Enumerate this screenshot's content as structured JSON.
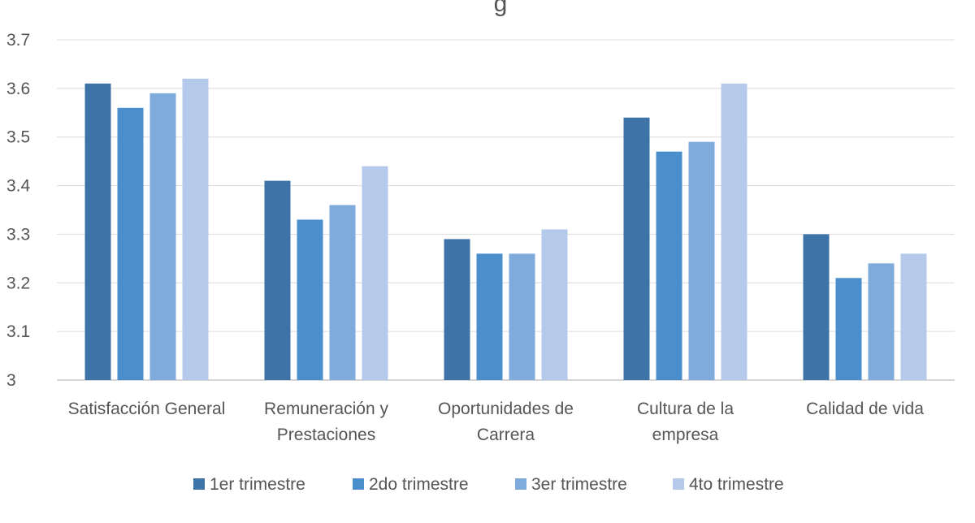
{
  "chart_data": {
    "type": "bar",
    "title": "g",
    "xlabel": "",
    "ylabel": "",
    "ylim": [
      3,
      3.7
    ],
    "yticks": [
      "3",
      "3.1",
      "3.2",
      "3.3",
      "3.4",
      "3.5",
      "3.6",
      "3.7"
    ],
    "grid": true,
    "legend_position": "bottom",
    "categories": [
      [
        "Satisfacción General"
      ],
      [
        "Remuneración y",
        "Prestaciones"
      ],
      [
        "Oportunidades de",
        "Carrera"
      ],
      [
        "Cultura de la",
        "empresa"
      ],
      [
        "Calidad de vida"
      ]
    ],
    "series": [
      {
        "name": "1er trimestre",
        "color": "#3e73a7",
        "values": [
          3.61,
          3.41,
          3.29,
          3.54,
          3.3
        ]
      },
      {
        "name": "2do trimestre",
        "color": "#4a8fcb",
        "values": [
          3.56,
          3.33,
          3.26,
          3.47,
          3.21
        ]
      },
      {
        "name": "3er trimestre",
        "color": "#7eaadc",
        "values": [
          3.59,
          3.36,
          3.26,
          3.49,
          3.24
        ]
      },
      {
        "name": "4to trimestre",
        "color": "#b5caea",
        "values": [
          3.62,
          3.44,
          3.31,
          3.61,
          3.26
        ]
      }
    ]
  }
}
